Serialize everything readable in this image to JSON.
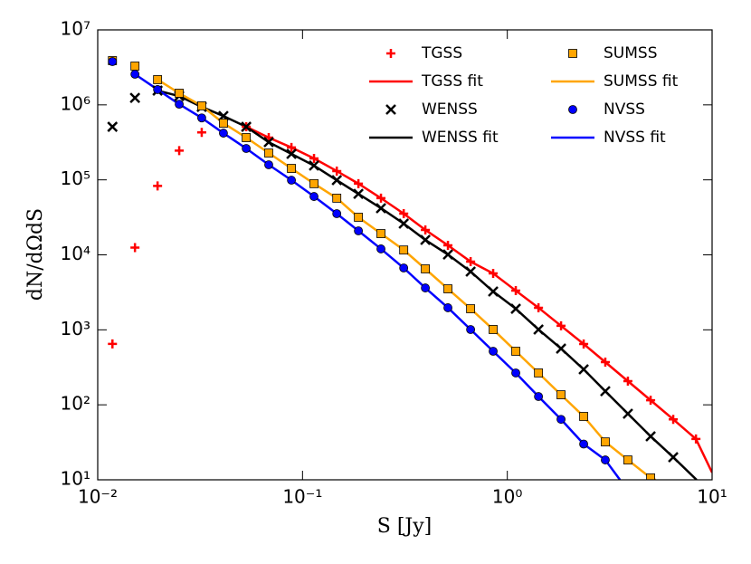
{
  "chart_data": {
    "type": "scatter",
    "xlabel": "S [Jy]",
    "ylabel": "dN/dΩdS",
    "xscale": "log",
    "yscale": "log",
    "xlim": [
      0.01,
      10
    ],
    "ylim": [
      10,
      10000000
    ],
    "xticks": [
      {
        "value": 0.01,
        "label": "10⁻²"
      },
      {
        "value": 0.1,
        "label": "10⁻¹"
      },
      {
        "value": 1,
        "label": "10⁰"
      },
      {
        "value": 10,
        "label": "10¹"
      }
    ],
    "yticks": [
      {
        "value": 10,
        "label": "10¹"
      },
      {
        "value": 100,
        "label": "10²"
      },
      {
        "value": 1000,
        "label": "10³"
      },
      {
        "value": 10000,
        "label": "10⁴"
      },
      {
        "value": 100000,
        "label": "10⁵"
      },
      {
        "value": 1000000,
        "label": "10⁶"
      },
      {
        "value": 10000000,
        "label": "10⁷"
      }
    ],
    "legend": "upper right",
    "series": [
      {
        "name": "TGSS",
        "color": "#ff0000",
        "marker": "+",
        "x": [
          0.0118,
          0.0152,
          0.0196,
          0.025,
          0.0322,
          0.0531,
          0.0684,
          0.0883,
          0.1138,
          0.147,
          0.1875,
          0.2416,
          0.312,
          0.398,
          0.513,
          0.662,
          0.853,
          1.1,
          1.42,
          1.83,
          2.36,
          3.01,
          3.88,
          5.01,
          6.46,
          8.34
        ],
        "values": [
          650,
          12500,
          83000,
          245000,
          430000,
          510000,
          366000,
          270000,
          193000,
          131000,
          89000,
          57000,
          35400,
          21500,
          13400,
          8110,
          5650,
          3330,
          1970,
          1130,
          647,
          371,
          207,
          115,
          64,
          35
        ]
      },
      {
        "name": "TGSS fit",
        "color": "#ff0000",
        "x": [
          0.0531,
          0.0684,
          0.0883,
          0.1138,
          0.147,
          0.1875,
          0.2416,
          0.312,
          0.398,
          0.513,
          0.662,
          0.853,
          1.1,
          1.42,
          1.83,
          2.36,
          3.01,
          3.88,
          5.01,
          6.46,
          8.34,
          10
        ],
        "values": [
          510000,
          366000,
          270000,
          193000,
          131000,
          89000,
          57000,
          35400,
          21500,
          13400,
          8110,
          5650,
          3330,
          1970,
          1130,
          647,
          371,
          207,
          115,
          64,
          35,
          12.5
        ]
      },
      {
        "name": "WENSS",
        "color": "#000000",
        "marker": "x",
        "x": [
          0.0118,
          0.0152,
          0.0196,
          0.025,
          0.0322,
          0.0411,
          0.0531,
          0.0684,
          0.0883,
          0.1138,
          0.147,
          0.1875,
          0.2416,
          0.312,
          0.398,
          0.513,
          0.662,
          0.853,
          1.1,
          1.42,
          1.83,
          2.36,
          3.01,
          3.88,
          5.01,
          6.46
        ],
        "values": [
          510000,
          1240000,
          1550000,
          1310000,
          940000,
          710000,
          510000,
          318000,
          222000,
          155000,
          99000,
          65000,
          41900,
          26100,
          15800,
          10100,
          5980,
          3240,
          1910,
          1010,
          562,
          297,
          152,
          76,
          38,
          20
        ]
      },
      {
        "name": "WENSS fit",
        "color": "#000000",
        "x": [
          0.0196,
          0.025,
          0.0322,
          0.0411,
          0.0531,
          0.0684,
          0.0883,
          0.1138,
          0.147,
          0.1875,
          0.2416,
          0.312,
          0.398,
          0.513,
          0.662,
          0.853,
          1.1,
          1.42,
          1.83,
          2.36,
          3.01,
          3.88,
          5.01,
          6.46,
          8.4
        ],
        "values": [
          1550000,
          1310000,
          940000,
          710000,
          510000,
          318000,
          222000,
          155000,
          99000,
          65000,
          41900,
          26100,
          15800,
          10100,
          5980,
          3240,
          1910,
          1010,
          562,
          297,
          152,
          76,
          38,
          20,
          10
        ]
      },
      {
        "name": "SUMSS",
        "color": "#ffa500",
        "marker": "s",
        "x": [
          0.0118,
          0.0152,
          0.0196,
          0.025,
          0.0322,
          0.0411,
          0.0531,
          0.0684,
          0.0883,
          0.1138,
          0.147,
          0.1875,
          0.2416,
          0.312,
          0.398,
          0.513,
          0.662,
          0.853,
          1.1,
          1.42,
          1.83,
          2.36,
          3.01,
          3.88,
          5.01
        ],
        "values": [
          3890000,
          3290000,
          2170000,
          1430000,
          970000,
          570000,
          366000,
          228000,
          142000,
          89000,
          57000,
          31700,
          19200,
          11600,
          6500,
          3520,
          1910,
          1010,
          518,
          266,
          136,
          70,
          32,
          18.4,
          10.6
        ]
      },
      {
        "name": "SUMSS fit",
        "color": "#ffa500",
        "x": [
          0.0196,
          0.025,
          0.0322,
          0.0411,
          0.0531,
          0.0684,
          0.0883,
          0.1138,
          0.147,
          0.1875,
          0.2416,
          0.312,
          0.398,
          0.513,
          0.662,
          0.853,
          1.1,
          1.42,
          1.83,
          2.36,
          3.01,
          3.88,
          5.01,
          5.3
        ],
        "values": [
          2170000,
          1430000,
          970000,
          570000,
          366000,
          228000,
          142000,
          89000,
          57000,
          31700,
          19200,
          11600,
          6500,
          3520,
          1910,
          1010,
          518,
          266,
          136,
          70,
          32,
          18.4,
          10.6,
          10
        ]
      },
      {
        "name": "NVSS",
        "color": "#0000ff",
        "marker": "o",
        "x": [
          0.0118,
          0.0152,
          0.0196,
          0.025,
          0.0322,
          0.0411,
          0.0531,
          0.0684,
          0.0883,
          0.1138,
          0.147,
          0.1875,
          0.2416,
          0.312,
          0.398,
          0.513,
          0.662,
          0.853,
          1.1,
          1.42,
          1.83,
          2.36,
          3.01
        ],
        "values": [
          3780000,
          2560000,
          1600000,
          1020000,
          670000,
          420000,
          262000,
          159000,
          99000,
          60000,
          35400,
          20900,
          12000,
          6680,
          3620,
          1970,
          1010,
          518,
          266,
          129,
          64,
          30,
          18.4
        ]
      },
      {
        "name": "NVSS fit",
        "color": "#0000ff",
        "x": [
          0.0152,
          0.0196,
          0.025,
          0.0322,
          0.0411,
          0.0531,
          0.0684,
          0.0883,
          0.1138,
          0.147,
          0.1875,
          0.2416,
          0.312,
          0.398,
          0.513,
          0.662,
          0.853,
          1.1,
          1.42,
          1.83,
          2.36,
          3.01,
          3.55
        ],
        "values": [
          2560000,
          1600000,
          1020000,
          670000,
          420000,
          262000,
          159000,
          99000,
          60000,
          35400,
          20900,
          12000,
          6680,
          3620,
          1970,
          1010,
          518,
          266,
          129,
          64,
          30,
          18.4,
          10
        ]
      }
    ]
  }
}
